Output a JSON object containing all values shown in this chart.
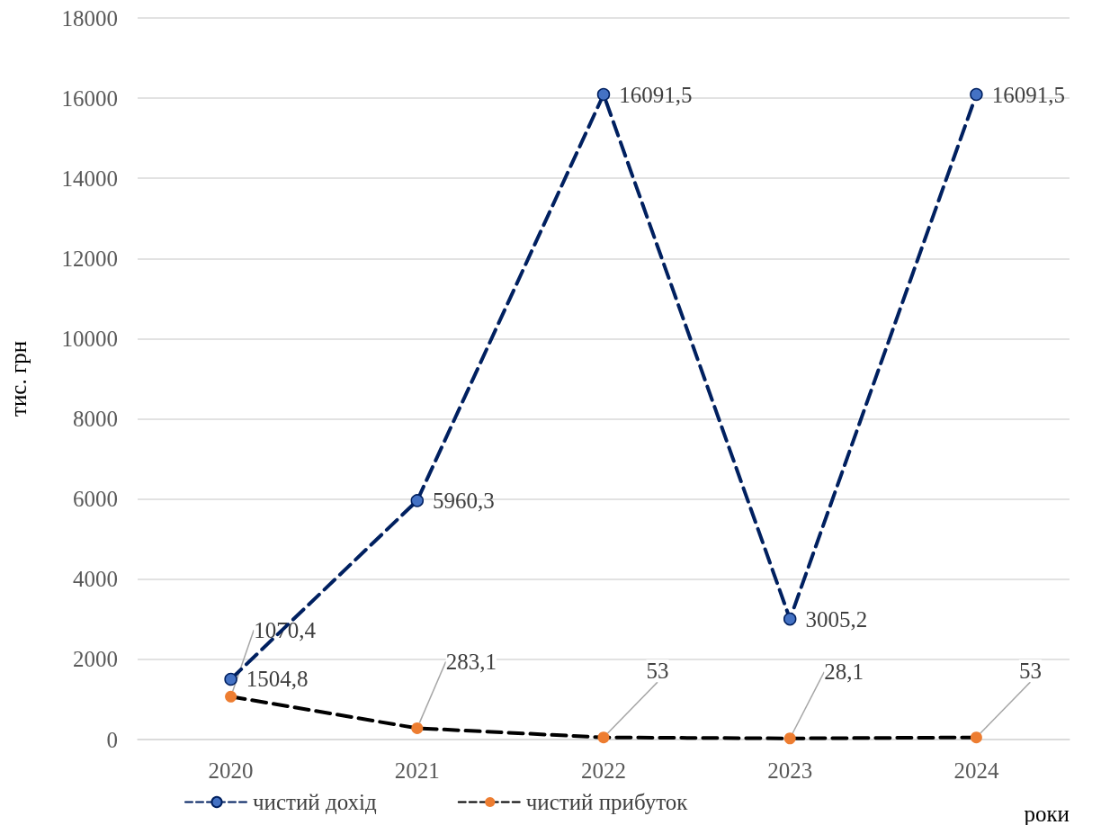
{
  "chart_data": {
    "type": "line",
    "xlabel": "роки",
    "ylabel": "тис. грн",
    "categories": [
      "2020",
      "2021",
      "2022",
      "2023",
      "2024"
    ],
    "series": [
      {
        "name": "чистий дохід",
        "color": "#4472c4",
        "values": [
          1504.8,
          5960.3,
          16091.5,
          3005.2,
          16091.5
        ],
        "value_labels": [
          "1504,8",
          "5960,3",
          "16091,5",
          "3005,2",
          "16091,5"
        ]
      },
      {
        "name": "чистий прибуток",
        "color": "#ed7d31",
        "values": [
          1070.4,
          283.1,
          53,
          28.1,
          53
        ],
        "value_labels": [
          "1070,4",
          "283,1",
          "53",
          "28,1",
          "53"
        ]
      }
    ],
    "ylim": [
      0,
      18000
    ],
    "yticks": [
      0,
      2000,
      4000,
      6000,
      8000,
      10000,
      12000,
      14000,
      16000,
      18000
    ],
    "grid": "y",
    "legend": "bottom left",
    "marker": "circle",
    "line_style": "dashed"
  }
}
